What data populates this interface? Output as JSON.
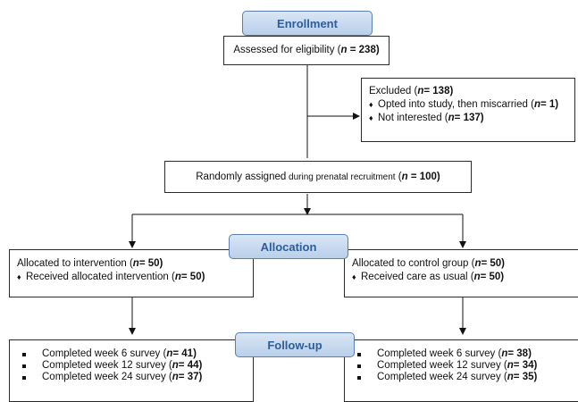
{
  "stages": {
    "enrollment": "Enrollment",
    "allocation": "Allocation",
    "followup": "Follow-up"
  },
  "assessed": {
    "label": "Assessed for eligibility",
    "paren_open": "(",
    "n": "n",
    "value": " = 238)"
  },
  "excluded": {
    "title_label": "Excluded",
    "title_value": " = 138)",
    "items": [
      {
        "label": "Opted into study, then miscarried",
        "value": " = 1)"
      },
      {
        "label": "Not interested",
        "value": " = 137)"
      }
    ]
  },
  "randomized": {
    "label_big": "Randomly assigned",
    "label_small": " during prenatal recruitment",
    "value": " = 100)"
  },
  "intervention": {
    "title_label": "Allocated to intervention",
    "title_value": " = 50)",
    "item_label": "Received allocated intervention",
    "item_value": " = 50)"
  },
  "control": {
    "title_label": "Allocated to control group",
    "title_value": " = 50)",
    "item_label": "Received care as usual",
    "item_value": " = 50)"
  },
  "followup_intervention": [
    {
      "label": "Completed week 6 survey",
      "value": " = 41)"
    },
    {
      "label": "Completed week 12 survey",
      "value": " = 44)"
    },
    {
      "label": "Completed week 24 survey",
      "value": " = 37)"
    }
  ],
  "followup_control": [
    {
      "label": "Completed week 6 survey",
      "value": " = 38)"
    },
    {
      "label": "Completed week 12 survey",
      "value": " = 34)"
    },
    {
      "label": "Completed week 24 survey",
      "value": " = 35)"
    }
  ],
  "symbols": {
    "n_letter": "n",
    "diamond": "♦"
  }
}
